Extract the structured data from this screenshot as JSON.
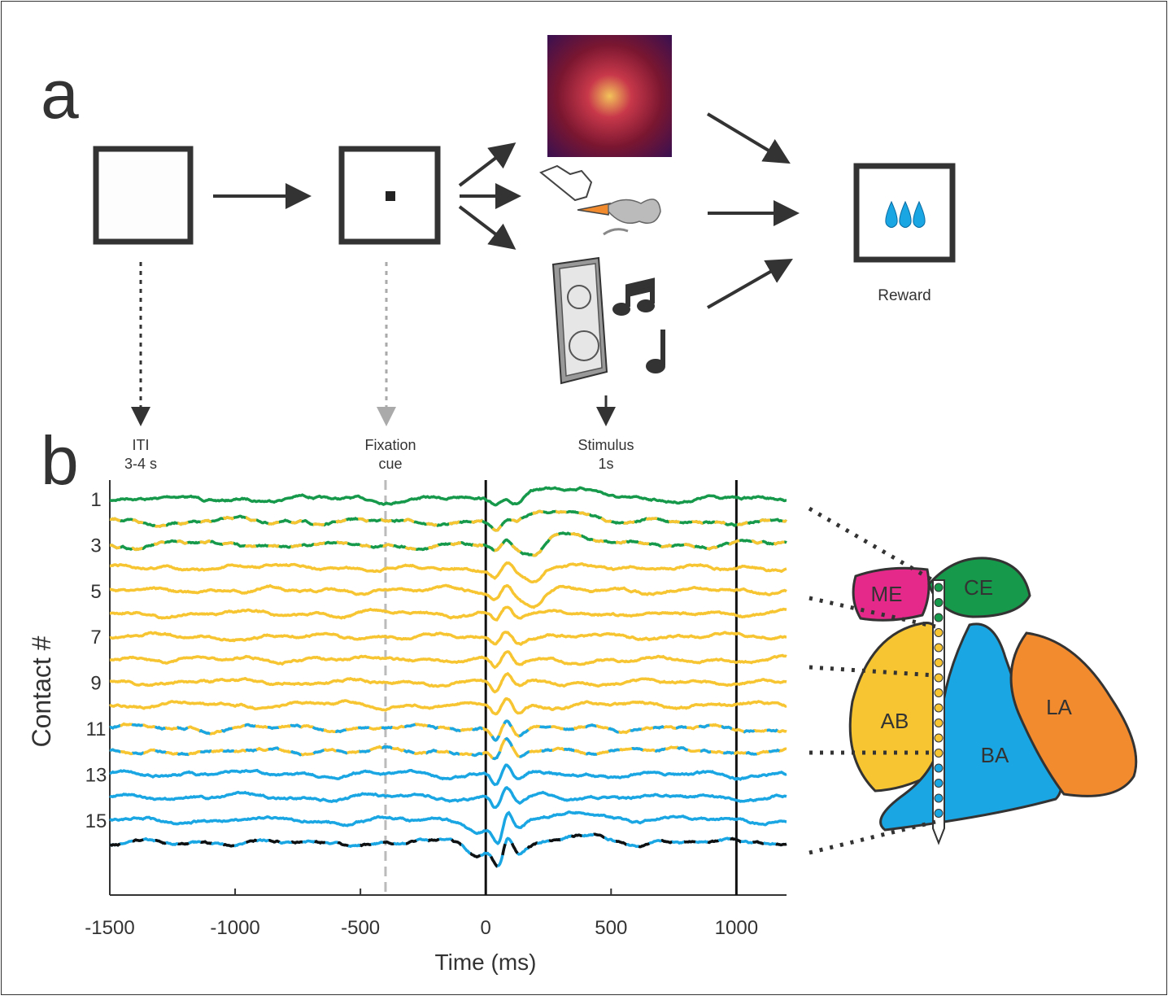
{
  "panel_a": {
    "label": "a",
    "iti": [
      "ITI",
      "3-4 s"
    ],
    "fixation": [
      "Fixation",
      "cue"
    ],
    "stimulus": [
      "Stimulus",
      "1s"
    ],
    "reward": "Reward"
  },
  "panel_b": {
    "label": "b",
    "xlabel": "Time (ms)",
    "ylabel": "Contact #",
    "xlim": [
      -1500,
      1200
    ],
    "xticks": [
      -1500,
      -1000,
      -500,
      0,
      500,
      1000
    ],
    "contact_ticks": [
      1,
      3,
      5,
      7,
      9,
      11,
      13,
      15
    ],
    "event_lines": [
      {
        "time": -400,
        "style": "dashed"
      },
      {
        "time": 0,
        "style": "solid"
      },
      {
        "time": 1000,
        "style": "solid"
      }
    ],
    "trace_colors": [
      [
        "#16994a"
      ],
      [
        "#16994a",
        "#f6c531"
      ],
      [
        "#16994a",
        "#f6c531"
      ],
      [
        "#f6c531"
      ],
      [
        "#f6c531"
      ],
      [
        "#f6c531"
      ],
      [
        "#f6c531"
      ],
      [
        "#f6c531"
      ],
      [
        "#f6c531"
      ],
      [
        "#f6c531"
      ],
      [
        "#f6c531",
        "#1aa6e2"
      ],
      [
        "#f6c531",
        "#1aa6e2"
      ],
      [
        "#1aa6e2"
      ],
      [
        "#1aa6e2"
      ],
      [
        "#1aa6e2"
      ],
      [
        "#1aa6e2",
        "#111111"
      ]
    ],
    "regions": [
      "ME",
      "CE",
      "AB",
      "BA",
      "LA"
    ]
  }
}
